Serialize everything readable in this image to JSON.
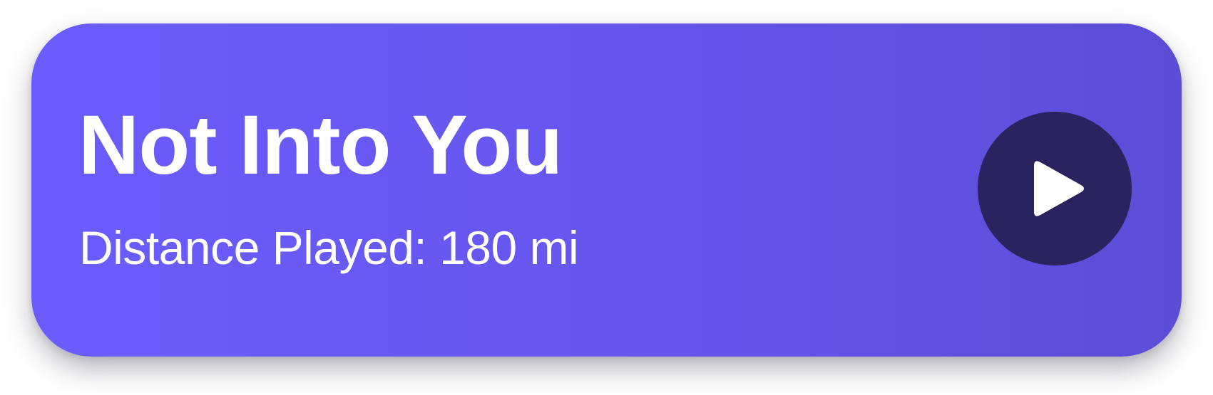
{
  "card": {
    "title": "Not Into You",
    "subtitle": "Distance Played: 180 mi",
    "play_icon": "play-icon",
    "colors": {
      "gradient_start": "#6b5dfd",
      "gradient_end": "#5b4dd6",
      "button_bg": "#29235f",
      "text": "#ffffff"
    }
  }
}
